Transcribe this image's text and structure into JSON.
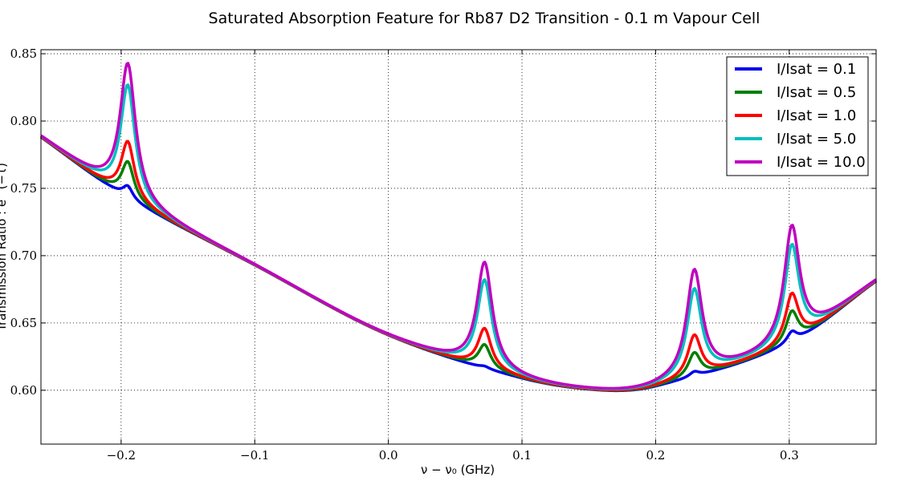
{
  "chart_data": {
    "type": "line",
    "title": "Saturated Absorption Feature for Rb87 D2 Transition - 0.1 m Vapour Cell",
    "xlabel": "ν − ν₀ (GHz)",
    "ylabel": "Transmission Ratio : e^(−τ)",
    "xlim": [
      -0.26,
      0.365
    ],
    "ylim": [
      0.56,
      0.853
    ],
    "x_ticks": [
      -0.2,
      -0.1,
      0.0,
      0.1,
      0.2,
      0.3
    ],
    "x_tick_labels": [
      "−0.2",
      "−0.1",
      "0.0",
      "0.1",
      "0.2",
      "0.3"
    ],
    "y_ticks": [
      0.6,
      0.65,
      0.7,
      0.75,
      0.8,
      0.85
    ],
    "y_tick_labels": [
      "0.60",
      "0.65",
      "0.70",
      "0.75",
      "0.80",
      "0.85"
    ],
    "grid": true,
    "legend_position": "top-right",
    "baseline": {
      "x": [
        -0.26,
        -0.2,
        -0.1,
        0.0,
        0.1,
        0.16,
        0.2,
        0.3,
        0.365
      ],
      "y": [
        0.788,
        0.746,
        0.693,
        0.641,
        0.609,
        0.6,
        0.603,
        0.635,
        0.681
      ]
    },
    "peak_centers": [
      -0.195,
      0.072,
      0.229,
      0.302
    ],
    "series": [
      {
        "name": "I/Isat = 0.1",
        "color": "#0000ee",
        "peak_heights": [
          0.752,
          0.618,
          0.614,
          0.644
        ]
      },
      {
        "name": "I/Isat = 0.5",
        "color": "#007f00",
        "peak_heights": [
          0.77,
          0.634,
          0.628,
          0.659
        ]
      },
      {
        "name": "I/Isat = 1.0",
        "color": "#ff0000",
        "peak_heights": [
          0.785,
          0.646,
          0.641,
          0.672
        ]
      },
      {
        "name": "I/Isat = 5.0",
        "color": "#00bfbf",
        "peak_heights": [
          0.827,
          0.682,
          0.675,
          0.708
        ]
      },
      {
        "name": "I/Isat = 10.0",
        "color": "#bf00bf",
        "peak_heights": [
          0.843,
          0.695,
          0.689,
          0.722
        ]
      }
    ]
  }
}
